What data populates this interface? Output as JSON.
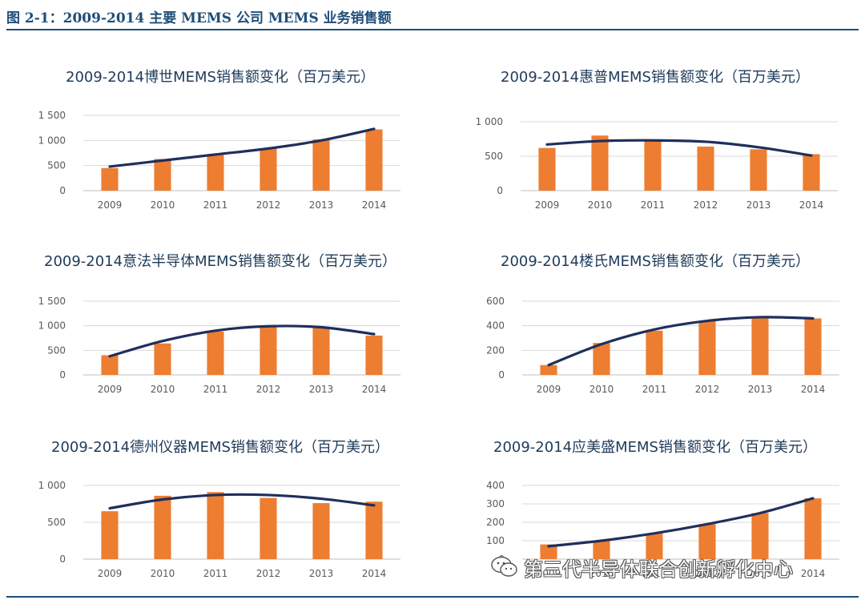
{
  "figure": {
    "title": "图 2-1：2009-2014 主要 MEMS 公司 MEMS 业务销售额",
    "bar_color": "#ed7d31",
    "trend_color": "#1f2f5c"
  },
  "watermark": {
    "text": "第三代半导体联合创新孵化中心",
    "icon": "wechat-icon"
  },
  "chart_data": [
    {
      "type": "bar",
      "title": "2009-2014博世MEMS销售额变化（百万美元）",
      "categories": [
        "2009",
        "2010",
        "2011",
        "2012",
        "2013",
        "2014"
      ],
      "values": [
        450,
        630,
        720,
        840,
        1020,
        1220
      ],
      "trend": [
        480,
        600,
        720,
        840,
        1000,
        1230
      ],
      "ylim": [
        0,
        1500
      ],
      "yticks": [
        0,
        500,
        1000,
        1500
      ],
      "ytick_labels": [
        "0",
        "500",
        "1 000",
        "1 500"
      ]
    },
    {
      "type": "bar",
      "title": "2009-2014惠普MEMS销售额变化（百万美元）",
      "categories": [
        "2009",
        "2010",
        "2011",
        "2012",
        "2013",
        "2014"
      ],
      "values": [
        620,
        800,
        720,
        640,
        600,
        530
      ],
      "trend": [
        670,
        720,
        730,
        710,
        630,
        510
      ],
      "ylim": [
        0,
        1000
      ],
      "yticks": [
        0,
        500,
        1000
      ],
      "ytick_labels": [
        "0",
        "500",
        "1 000"
      ]
    },
    {
      "type": "bar",
      "title": "2009-2014意法半导体MEMS销售额变化（百万美元）",
      "categories": [
        "2009",
        "2010",
        "2011",
        "2012",
        "2013",
        "2014"
      ],
      "values": [
        400,
        640,
        880,
        1000,
        960,
        800
      ],
      "trend": [
        380,
        690,
        900,
        990,
        970,
        830
      ],
      "ylim": [
        0,
        1500
      ],
      "yticks": [
        0,
        500,
        1000,
        1500
      ],
      "ytick_labels": [
        "0",
        "500",
        "1 000",
        "1 500"
      ]
    },
    {
      "type": "bar",
      "title": "2009-2014楼氏MEMS销售额变化（百万美元）",
      "categories": [
        "2009",
        "2010",
        "2011",
        "2012",
        "2013",
        "2014"
      ],
      "values": [
        80,
        260,
        360,
        440,
        470,
        460
      ],
      "trend": [
        80,
        250,
        370,
        440,
        470,
        460
      ],
      "ylim": [
        0,
        600
      ],
      "yticks": [
        0,
        200,
        400,
        600
      ],
      "ytick_labels": [
        "0",
        "200",
        "400",
        "600"
      ]
    },
    {
      "type": "bar",
      "title": "2009-2014德州仪器MEMS销售额变化（百万美元）",
      "categories": [
        "2009",
        "2010",
        "2011",
        "2012",
        "2013",
        "2014"
      ],
      "values": [
        650,
        860,
        910,
        830,
        760,
        780
      ],
      "trend": [
        690,
        810,
        870,
        870,
        820,
        730
      ],
      "ylim": [
        0,
        1000
      ],
      "yticks": [
        0,
        500,
        1000
      ],
      "ytick_labels": [
        "0",
        "500",
        "1 000"
      ]
    },
    {
      "type": "bar",
      "title": "2009-2014应美盛MEMS销售额变化（百万美元）",
      "categories": [
        "2009",
        "2010",
        "2011",
        "2012",
        "2013",
        "2014"
      ],
      "values": [
        80,
        100,
        140,
        190,
        250,
        330
      ],
      "trend": [
        70,
        100,
        140,
        190,
        250,
        330
      ],
      "ylim": [
        0,
        400
      ],
      "yticks": [
        0,
        100,
        200,
        300,
        400
      ],
      "ytick_labels": [
        "0",
        "100",
        "200",
        "300",
        "400"
      ]
    }
  ]
}
